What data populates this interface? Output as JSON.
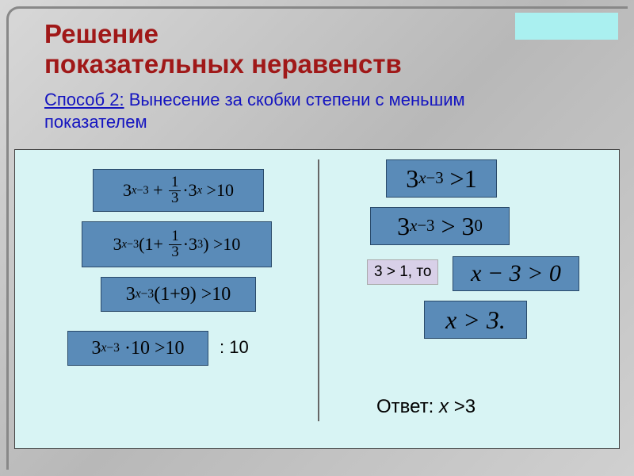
{
  "colors": {
    "page_bg_gradient": [
      "#d8d8d8",
      "#b8b8b8",
      "#d0d0d0"
    ],
    "frame_border": "#888888",
    "corner_box": "#aaf0f0",
    "title": "#a01818",
    "subtitle": "#1414c0",
    "content_bg": "#d8f4f4",
    "content_border": "#444444",
    "divider": "#666666",
    "eq_fill": "#5a8bb8",
    "eq_border": "#2a4a6a",
    "small_label_bg": "#d8d0e8",
    "text": "#000000"
  },
  "fonts": {
    "title": {
      "family": "Arial",
      "size_pt": 25,
      "weight": "bold"
    },
    "subtitle": {
      "family": "Arial",
      "size_pt": 17
    },
    "equations": {
      "family": "Times New Roman",
      "size_pt_range": [
        17,
        24
      ]
    },
    "labels": {
      "family": "Arial",
      "size_pt": 17
    }
  },
  "title": {
    "line1": "Решение",
    "line2": "показательных неравенств"
  },
  "subtitle": {
    "method_label": "Способ 2:",
    "rest": " Вынесение за скобки степени с меньшим показателем"
  },
  "left_equations": {
    "eq1": "3^{x-3} + (1/3)·3^{x} > 10",
    "eq2": "3^{x-3}(1 + (1/3)·3^{3}) > 10",
    "eq3": "3^{x-3}(1 + 9) > 10",
    "eq4": "3^{x-3}·10 > 10"
  },
  "right_equations": {
    "eq5": "3^{x-3} > 1",
    "eq6": "3^{x-3} > 3^{0}",
    "eq7": "x − 3 > 0",
    "eq8": "x > 3."
  },
  "labels": {
    "divide_by_10": ": 10",
    "base_note": "3 > 1, то"
  },
  "answer": {
    "prefix": "Ответ: ",
    "var": "х",
    "rest": " >3"
  }
}
